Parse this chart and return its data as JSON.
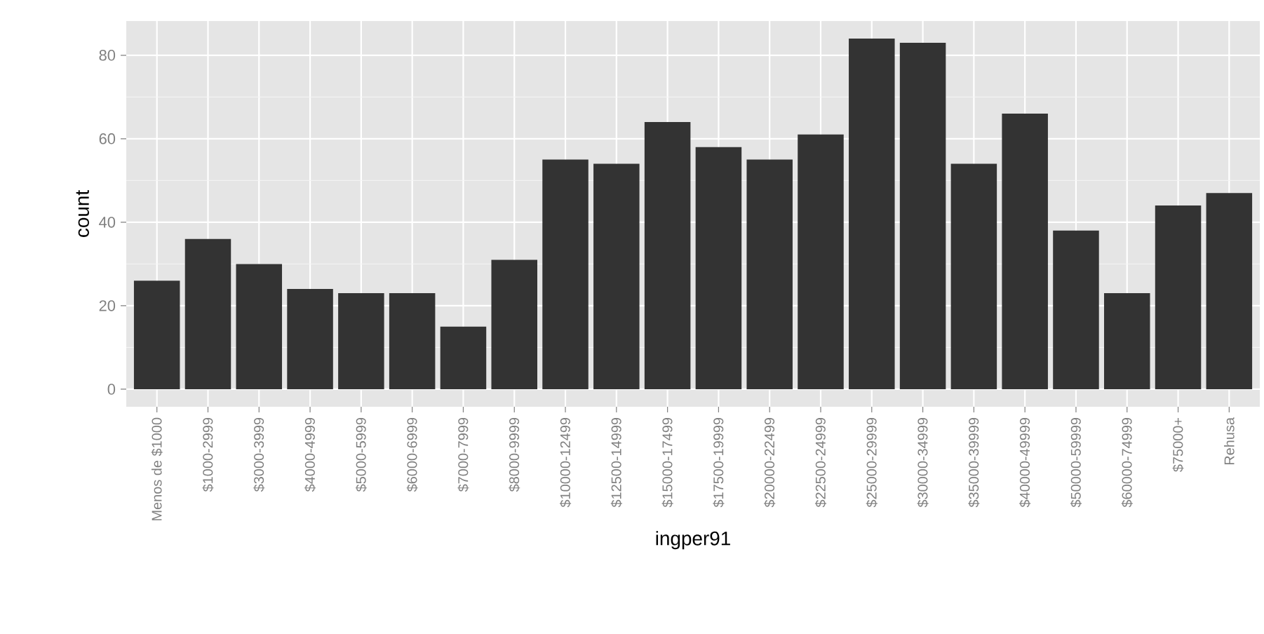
{
  "chart_data": {
    "type": "bar",
    "xlabel": "ingper91",
    "ylabel": "count",
    "categories": [
      "Menos de $1000",
      "$1000-2999",
      "$3000-3999",
      "$4000-4999",
      "$5000-5999",
      "$6000-6999",
      "$7000-7999",
      "$8000-9999",
      "$10000-12499",
      "$12500-14999",
      "$15000-17499",
      "$17500-19999",
      "$20000-22499",
      "$22500-24999",
      "$25000-29999",
      "$30000-34999",
      "$35000-39999",
      "$40000-49999",
      "$50000-59999",
      "$60000-74999",
      "$75000+",
      "Rehusa"
    ],
    "values": [
      26,
      36,
      30,
      24,
      23,
      23,
      15,
      31,
      55,
      54,
      64,
      58,
      55,
      61,
      84,
      83,
      54,
      66,
      38,
      23,
      44,
      47
    ],
    "color": "#333333",
    "ylim": [
      -4.2,
      88.2
    ],
    "yticks": [
      0,
      20,
      40,
      60,
      80
    ],
    "grid": true
  }
}
